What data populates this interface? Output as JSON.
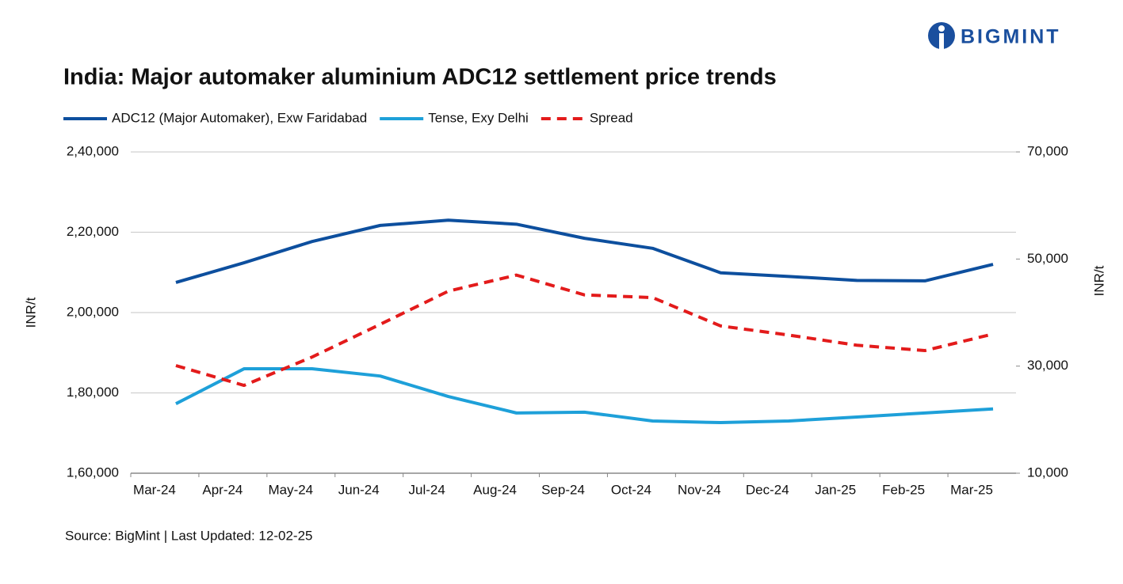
{
  "brand": "BIGMINT",
  "chart_data": {
    "type": "line",
    "title": "India: Major automaker aluminium ADC12 settlement price trends",
    "source": "Source: BigMint | Last Updated: 12-02-25",
    "ylabel": "INR/t",
    "y2label": "INR/t",
    "categories": [
      "Mar-24",
      "Apr-24",
      "May-24",
      "Jun-24",
      "Jul-24",
      "Aug-24",
      "Sep-24",
      "Oct-24",
      "Nov-24",
      "Dec-24",
      "Jan-25",
      "Feb-25",
      "Mar-25"
    ],
    "series": [
      {
        "name": "ADC12 (Major Automaker), Exw Faridabad",
        "color": "#0d4f9e",
        "style": "solid",
        "values": [
          207500,
          212400,
          217700,
          221700,
          223000,
          222000,
          218500,
          216000,
          209900,
          209000,
          208000,
          207900,
          212000
        ]
      },
      {
        "name": "Tense, Exy Delhi",
        "color": "#1ea0d9",
        "style": "solid",
        "values": [
          177300,
          186000,
          186000,
          184200,
          179100,
          175000,
          175200,
          173000,
          172600,
          173000,
          174000,
          175000,
          176000
        ]
      },
      {
        "name": "Spread",
        "color": "#e31b1b",
        "style": "dashed",
        "axis": "y2",
        "values": [
          30100,
          26400,
          31700,
          37800,
          44000,
          47000,
          43300,
          42800,
          37500,
          35800,
          33900,
          32900,
          36000
        ]
      }
    ],
    "ylim": [
      160000,
      240000
    ],
    "yticks": [
      {
        "value": 160000,
        "label": "1,60,000"
      },
      {
        "value": 180000,
        "label": "1,80,000"
      },
      {
        "value": 200000,
        "label": "2,00,000"
      },
      {
        "value": 220000,
        "label": "2,20,000"
      },
      {
        "value": 240000,
        "label": "2,40,000"
      }
    ],
    "y2lim": [
      10000,
      70000
    ],
    "y2ticks": [
      {
        "value": 10000,
        "label": "10,000"
      },
      {
        "value": 30000,
        "label": "30,000"
      },
      {
        "value": 50000,
        "label": "50,000"
      },
      {
        "value": 70000,
        "label": "70,000"
      }
    ],
    "grid": true
  }
}
